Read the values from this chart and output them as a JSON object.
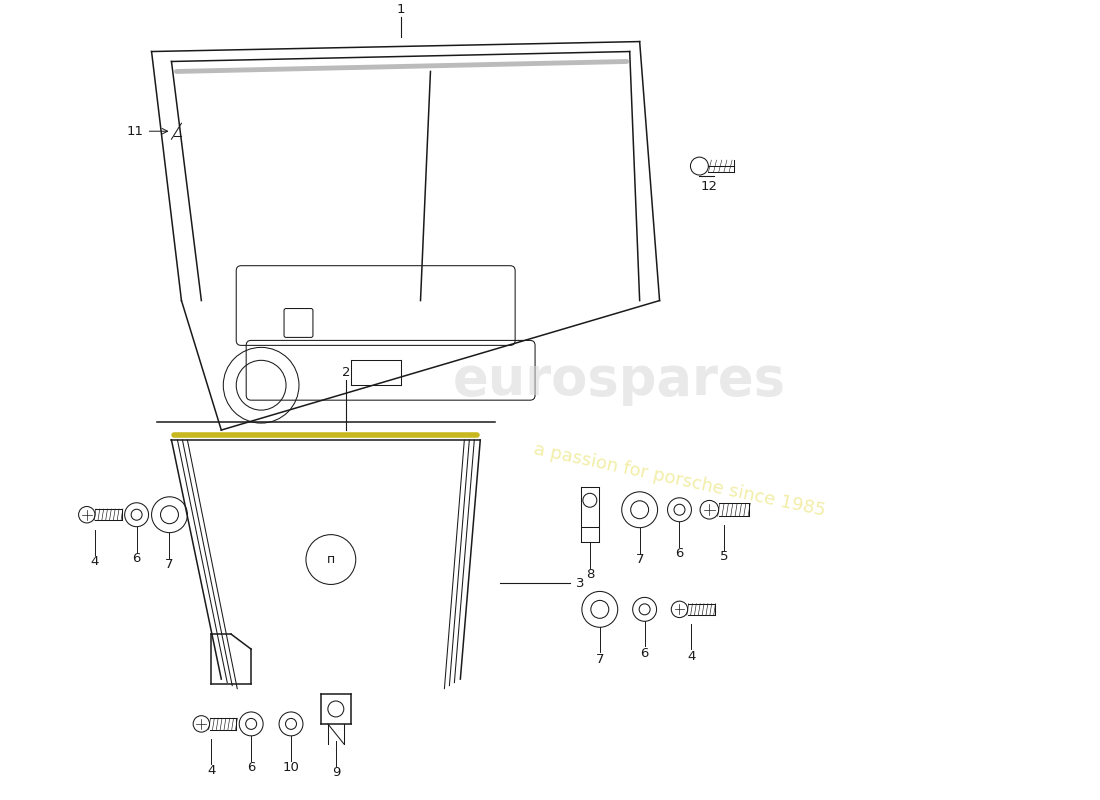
{
  "bg_color": "#ffffff",
  "line_color": "#1a1a1a",
  "watermark1": "eurospares",
  "watermark2": "a passion for porsche since 1985",
  "watermark_color1": "#d8d8d8",
  "watermark_color2": "#e8e060",
  "label_fontsize": 9.5
}
